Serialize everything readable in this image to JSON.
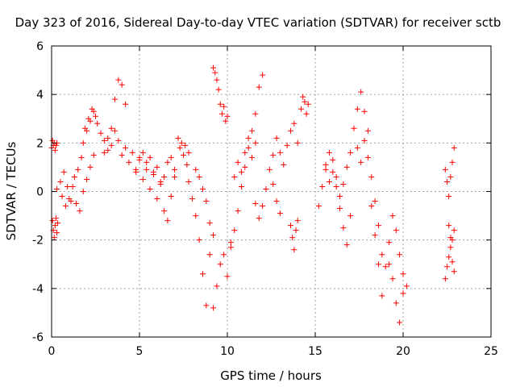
{
  "chart_data": {
    "type": "scatter",
    "title": "Day 323 of 2016, Sidereal Day-to-day VTEC variation (SDTVAR) for receiver sctb",
    "xlabel": "GPS time / hours",
    "ylabel": "SDTVAR / TECUs",
    "xlim": [
      0,
      25
    ],
    "ylim": [
      -6,
      6
    ],
    "xticks": [
      "0",
      "5",
      "10",
      "15",
      "20",
      "25"
    ],
    "yticks": [
      "-6",
      "-4",
      "-2",
      "0",
      "2",
      "4",
      "6"
    ],
    "grid": true,
    "marker": "+",
    "color": "#ff0000",
    "series": [
      {
        "name": "SDTVAR",
        "segments": [
          {
            "x": [
              0.0,
              0.05,
              0.1,
              0.15,
              0.2,
              0.25,
              0.3
            ],
            "y": [
              1.8,
              2.1,
              1.9,
              2.0,
              1.7,
              1.9,
              2.0
            ]
          },
          {
            "x": [
              0.05,
              0.1,
              0.15,
              0.2,
              0.25,
              0.3,
              0.35
            ],
            "y": [
              -1.2,
              -1.6,
              -1.9,
              -1.4,
              -1.1,
              -1.7,
              -1.3
            ]
          },
          {
            "x": [
              0.3,
              0.5,
              0.7,
              0.9,
              1.1,
              1.3,
              1.5,
              1.7,
              1.9,
              2.1,
              2.3,
              2.5
            ],
            "y": [
              0.1,
              0.4,
              0.8,
              0.2,
              -0.4,
              0.6,
              0.9,
              1.4,
              2.6,
              3.0,
              3.4,
              3.1
            ]
          },
          {
            "x": [
              0.6,
              0.8,
              1.0,
              1.2,
              1.4,
              1.6,
              1.8,
              2.0,
              2.2,
              2.4
            ],
            "y": [
              -0.2,
              -0.6,
              -0.3,
              0.2,
              -0.5,
              -0.8,
              0.0,
              0.5,
              1.0,
              1.5
            ]
          },
          {
            "x": [
              1.8,
              2.0,
              2.2,
              2.4,
              2.6,
              2.8,
              3.0,
              3.2,
              3.4,
              3.6,
              3.8,
              4.0,
              4.2
            ],
            "y": [
              2.0,
              2.5,
              2.9,
              3.3,
              2.8,
              2.4,
              2.1,
              1.7,
              2.6,
              3.8,
              4.6,
              4.4,
              3.6
            ]
          },
          {
            "x": [
              3.0,
              3.2,
              3.4,
              3.6,
              3.8,
              4.0,
              4.2,
              4.4,
              4.6,
              4.8,
              5.0
            ],
            "y": [
              1.6,
              2.2,
              1.9,
              2.5,
              2.1,
              1.5,
              1.8,
              1.2,
              1.6,
              0.9,
              1.3
            ]
          },
          {
            "x": [
              4.8,
              5.0,
              5.2,
              5.4,
              5.6,
              5.8,
              6.0,
              6.2,
              6.4,
              6.6,
              6.8,
              7.0
            ],
            "y": [
              0.8,
              1.4,
              0.5,
              0.9,
              0.1,
              0.7,
              -0.3,
              0.4,
              -0.8,
              -1.2,
              -0.2,
              0.6
            ]
          },
          {
            "x": [
              5.2,
              5.4,
              5.6,
              5.8,
              6.0,
              6.2,
              6.4,
              6.6,
              6.8,
              7.0
            ],
            "y": [
              1.6,
              1.2,
              1.4,
              0.8,
              1.0,
              0.3,
              0.6,
              1.2,
              1.4,
              0.9
            ]
          },
          {
            "x": [
              7.2,
              7.3,
              7.4,
              7.5,
              7.6,
              7.7,
              7.8
            ],
            "y": [
              2.2,
              1.8,
              2.0,
              1.5,
              1.9,
              1.1,
              1.6
            ]
          },
          {
            "x": [
              7.8,
              8.0,
              8.2,
              8.4,
              8.6,
              8.8,
              9.0
            ],
            "y": [
              0.4,
              -0.3,
              -1.0,
              -2.0,
              -3.4,
              -4.7,
              -2.6
            ]
          },
          {
            "x": [
              8.2,
              8.4,
              8.6,
              8.8,
              9.0,
              9.2
            ],
            "y": [
              0.9,
              0.6,
              0.1,
              -0.4,
              -1.3,
              -1.8
            ]
          },
          {
            "x": [
              9.2,
              9.3,
              9.4,
              9.5,
              9.6,
              9.7,
              9.8,
              9.9,
              10.0
            ],
            "y": [
              5.1,
              4.9,
              4.6,
              4.2,
              3.6,
              3.2,
              3.5,
              2.9,
              3.1
            ]
          },
          {
            "x": [
              9.2,
              9.4,
              9.6,
              9.8,
              10.0,
              10.2
            ],
            "y": [
              -4.8,
              -3.9,
              -3.0,
              -2.6,
              -3.5,
              -2.1
            ]
          },
          {
            "x": [
              10.2,
              10.4,
              10.6,
              10.8,
              11.0,
              11.2,
              11.4,
              11.6,
              11.8,
              12.0
            ],
            "y": [
              -2.3,
              -1.6,
              -0.8,
              0.2,
              1.0,
              1.8,
              2.5,
              3.2,
              4.3,
              4.8
            ]
          },
          {
            "x": [
              10.4,
              10.6,
              10.8,
              11.0,
              11.2,
              11.4,
              11.6
            ],
            "y": [
              0.6,
              1.2,
              0.8,
              1.6,
              2.2,
              1.4,
              2.0
            ]
          },
          {
            "x": [
              11.6,
              11.8,
              12.0,
              12.2,
              12.4,
              12.6,
              12.8,
              13.0
            ],
            "y": [
              -0.5,
              -1.1,
              -0.6,
              0.1,
              0.9,
              0.3,
              -0.4,
              -0.9
            ]
          },
          {
            "x": [
              12.6,
              12.8,
              13.0,
              13.2,
              13.4,
              13.6,
              13.8,
              14.0
            ],
            "y": [
              1.5,
              2.2,
              1.6,
              1.1,
              1.9,
              2.5,
              2.8,
              2.0
            ]
          },
          {
            "x": [
              13.6,
              13.7,
              13.8,
              13.9,
              14.0
            ],
            "y": [
              -1.4,
              -1.9,
              -2.4,
              -1.6,
              -1.2
            ]
          },
          {
            "x": [
              14.2,
              14.3,
              14.4,
              14.5,
              14.6
            ],
            "y": [
              3.4,
              3.9,
              3.7,
              3.2,
              3.6
            ]
          },
          {
            "x": [
              15.2,
              15.4,
              15.6,
              15.8,
              16.0,
              16.2,
              16.4,
              16.6,
              16.8,
              17.0
            ],
            "y": [
              -0.6,
              0.2,
              1.1,
              1.6,
              0.8,
              0.2,
              -0.7,
              -1.5,
              -2.2,
              -1.0
            ]
          },
          {
            "x": [
              15.6,
              15.8,
              16.0,
              16.2,
              16.4,
              16.6,
              16.8
            ],
            "y": [
              0.9,
              0.4,
              1.3,
              0.6,
              -0.2,
              0.3,
              1.0
            ]
          },
          {
            "x": [
              17.0,
              17.2,
              17.4,
              17.6,
              17.8,
              18.0
            ],
            "y": [
              1.6,
              2.6,
              3.4,
              4.1,
              3.3,
              2.5
            ]
          },
          {
            "x": [
              17.4,
              17.6,
              17.8,
              18.0,
              18.2,
              18.4,
              18.6,
              18.8
            ],
            "y": [
              1.8,
              1.2,
              2.1,
              1.4,
              0.6,
              -0.4,
              -1.4,
              -2.6
            ]
          },
          {
            "x": [
              18.2,
              18.4,
              18.6,
              18.8,
              19.0,
              19.2,
              19.4
            ],
            "y": [
              -0.6,
              -1.8,
              -3.0,
              -4.3,
              -3.1,
              -2.1,
              -1.0
            ]
          },
          {
            "x": [
              19.2,
              19.4,
              19.6,
              19.8,
              20.0
            ],
            "y": [
              -3.0,
              -3.6,
              -4.6,
              -5.4,
              -4.2
            ]
          },
          {
            "x": [
              19.6,
              19.8,
              20.0,
              20.2
            ],
            "y": [
              -1.6,
              -2.6,
              -3.4,
              -3.9
            ]
          },
          {
            "x": [
              22.4,
              22.5,
              22.6,
              22.7,
              22.8,
              22.9
            ],
            "y": [
              -3.6,
              -3.1,
              -2.7,
              -2.3,
              -2.9,
              -3.3
            ]
          },
          {
            "x": [
              22.4,
              22.5,
              22.6,
              22.7,
              22.8,
              22.9
            ],
            "y": [
              0.9,
              0.4,
              -0.2,
              0.6,
              1.2,
              1.8
            ]
          },
          {
            "x": [
              22.6,
              22.7,
              22.8,
              22.9
            ],
            "y": [
              -1.4,
              -1.9,
              -2.0,
              -1.6
            ]
          }
        ]
      }
    ]
  }
}
